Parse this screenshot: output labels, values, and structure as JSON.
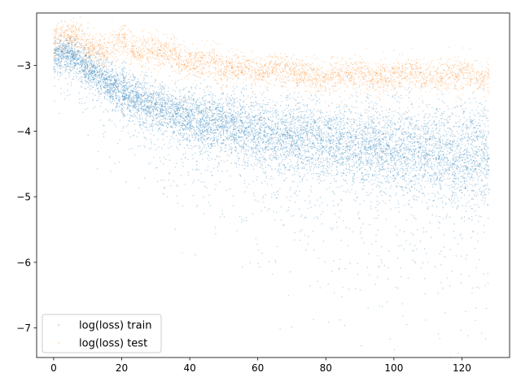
{
  "chart_data": {
    "type": "scatter",
    "title": "",
    "xlabel": "",
    "ylabel": "",
    "xlim": [
      -5,
      134
    ],
    "ylim": [
      -7.45,
      -2.2
    ],
    "xticks": [
      0,
      20,
      40,
      60,
      80,
      100,
      120
    ],
    "yticks": [
      -7,
      -6,
      -5,
      -4,
      -3
    ],
    "grid": false,
    "legend": {
      "position": "lower-left",
      "entries": [
        "log(loss) train",
        "log(loss) test"
      ]
    },
    "series": [
      {
        "name": "log(loss) train",
        "color": "#1f77b4",
        "marker": "point",
        "x_range": [
          0,
          128
        ],
        "trend": {
          "x": [
            0,
            5,
            10,
            20,
            30,
            40,
            50,
            60,
            70,
            80,
            90,
            100,
            110,
            120,
            128
          ],
          "median": [
            -2.85,
            -2.8,
            -3.05,
            -3.4,
            -3.62,
            -3.78,
            -3.9,
            -4.0,
            -4.08,
            -4.15,
            -4.22,
            -4.28,
            -4.33,
            -4.38,
            -4.4
          ]
        }
      },
      {
        "name": "log(loss) test",
        "color": "#ff7f0e",
        "marker": "point",
        "x_range": [
          0,
          128
        ],
        "trend": {
          "x": [
            0,
            5,
            10,
            15,
            20,
            25,
            30,
            35,
            40,
            45,
            50,
            55,
            60,
            65,
            70,
            75,
            80,
            85,
            90,
            95,
            100,
            105,
            110,
            115,
            120,
            125,
            128
          ],
          "median": [
            -2.65,
            -2.5,
            -2.7,
            -2.8,
            -2.6,
            -2.8,
            -2.75,
            -2.85,
            -3.0,
            -2.9,
            -3.05,
            -3.0,
            -3.1,
            -3.05,
            -3.1,
            -3.15,
            -3.2,
            -3.15,
            -3.1,
            -3.2,
            -3.15,
            -3.1,
            -3.2,
            -3.15,
            -3.1,
            -3.2,
            -3.2
          ]
        }
      }
    ]
  }
}
